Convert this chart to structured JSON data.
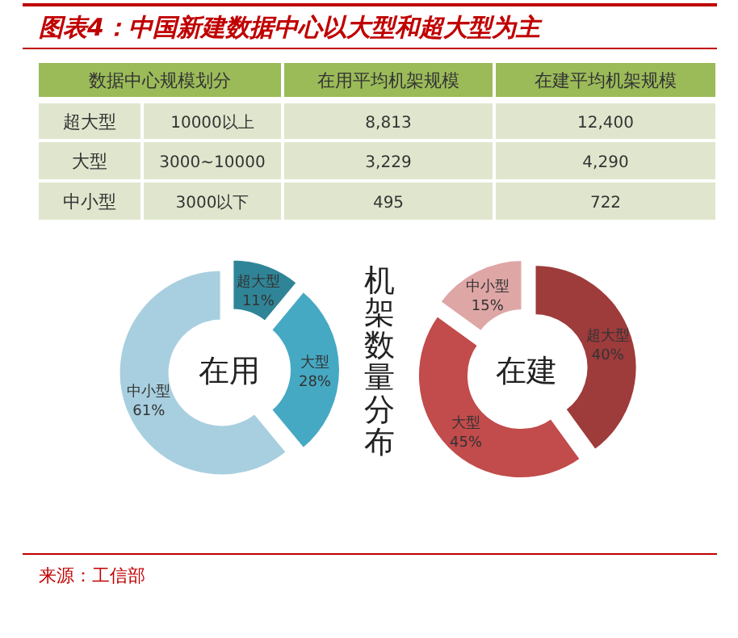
{
  "chart_data": [
    {
      "type": "other",
      "title": "图表4：中国新建数据中心以大型和超大型为主",
      "annotations": [
        "数据中心规模划分",
        "在用平均机架规模",
        "在建平均机架规模",
        "超大型",
        "10000以上",
        "8,813",
        "12,400",
        "大型",
        "3000~10000",
        "3,229",
        "4,290",
        "中小型",
        "3000以下",
        "495",
        "722"
      ]
    },
    {
      "type": "donut",
      "title": "在用",
      "categories": [
        "超大型",
        "大型",
        "中小型"
      ],
      "values": [
        11,
        28,
        61
      ],
      "colors": [
        "#2f8597",
        "#45a9c4",
        "#a8cfdf"
      ],
      "value_labels": [
        "11%",
        "28%",
        "61%"
      ],
      "annotations": [
        "机架数量分布"
      ]
    },
    {
      "type": "donut",
      "title": "在建",
      "categories": [
        "超大型",
        "大型",
        "中小型"
      ],
      "values": [
        40,
        45,
        15
      ],
      "colors": [
        "#9e3b3b",
        "#c24b4b",
        "#dfa6a6"
      ],
      "value_labels": [
        "40%",
        "45%",
        "15%"
      ],
      "annotations": [
        "来源：工信部"
      ]
    }
  ]
}
